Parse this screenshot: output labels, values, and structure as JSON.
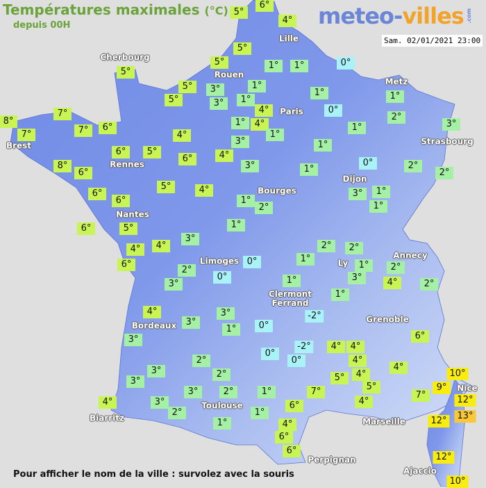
{
  "header": {
    "title": "Températures maximales",
    "unit": "(°C)",
    "subtitle": "depuis 00H",
    "logo_part1": "meteo-",
    "logo_part2": "villes",
    "logo_suffix": ".com",
    "datetime": "Sam. 02/01/2021 23:00"
  },
  "footer": "Pour afficher le nom de la ville : survolez avec la souris",
  "colors": {
    "sea": "#e0dfe0",
    "land_low": "#6f8ae6",
    "land_high": "#c9d6f5",
    "temp_below_1": "#a8f2f8",
    "temp_1_3": "#a4f0a4",
    "temp_4_8": "#c8f554",
    "temp_9_12": "#f8ec10",
    "temp_13_plus": "#f8c838",
    "title": "#6aa33a"
  },
  "cities": [
    "Cherbourg",
    "Lille",
    "Rouen",
    "Paris",
    "Metz",
    "Strasbourg",
    "Brest",
    "Rennes",
    "Dijon",
    "Bourges",
    "Nantes",
    "Limoges",
    "Annecy",
    "Ly",
    "Clermont\nFerrand",
    "Grenoble",
    "Bordeaux",
    "Toulouse",
    "Biarritz",
    "Marseille",
    "Perpignan",
    "Nice",
    "Ajaccio"
  ],
  "temperatures": [
    "5°",
    "6°",
    "4°",
    "5°",
    "5°",
    "5°",
    "5°",
    "3°",
    "5°",
    "3°",
    "1°",
    "1°",
    "0°",
    "1°",
    "1°",
    "4°",
    "1°",
    "0°",
    "1°",
    "4°",
    "1°",
    "3°",
    "1°",
    "1°",
    "1°",
    "2°",
    "3°",
    "7°",
    "8°",
    "7°",
    "7°",
    "6°",
    "4°",
    "6°",
    "5°",
    "6°",
    "4°",
    "3°",
    "1°",
    "0°",
    "2°",
    "2°",
    "8°",
    "6°",
    "6°",
    "6°",
    "5°",
    "4°",
    "3°",
    "1°",
    "1°",
    "1°",
    "2°",
    "6°",
    "5°",
    "1°",
    "3°",
    "4°",
    "4°",
    "6°",
    "2°",
    "3°",
    "0°",
    "0°",
    "1°",
    "2°",
    "2°",
    "1°",
    "3°",
    "2°",
    "4°",
    "2°",
    "1°",
    "1°",
    "-2°",
    "0°",
    "-2°",
    "0°",
    "0°",
    "3°",
    "1°",
    "4°",
    "3°",
    "3°",
    "4°",
    "4°",
    "4°",
    "4°",
    "5°",
    "5°",
    "4°",
    "6°",
    "4°",
    "7°",
    "7°",
    "2°",
    "2°",
    "3°",
    "3°",
    "3°",
    "2°",
    "1°",
    "6°",
    "1°",
    "3°",
    "2°",
    "4°",
    "1°",
    "4°",
    "6°",
    "6°",
    "10°",
    "9°",
    "12°",
    "13°",
    "12°",
    "12°",
    "10°"
  ]
}
